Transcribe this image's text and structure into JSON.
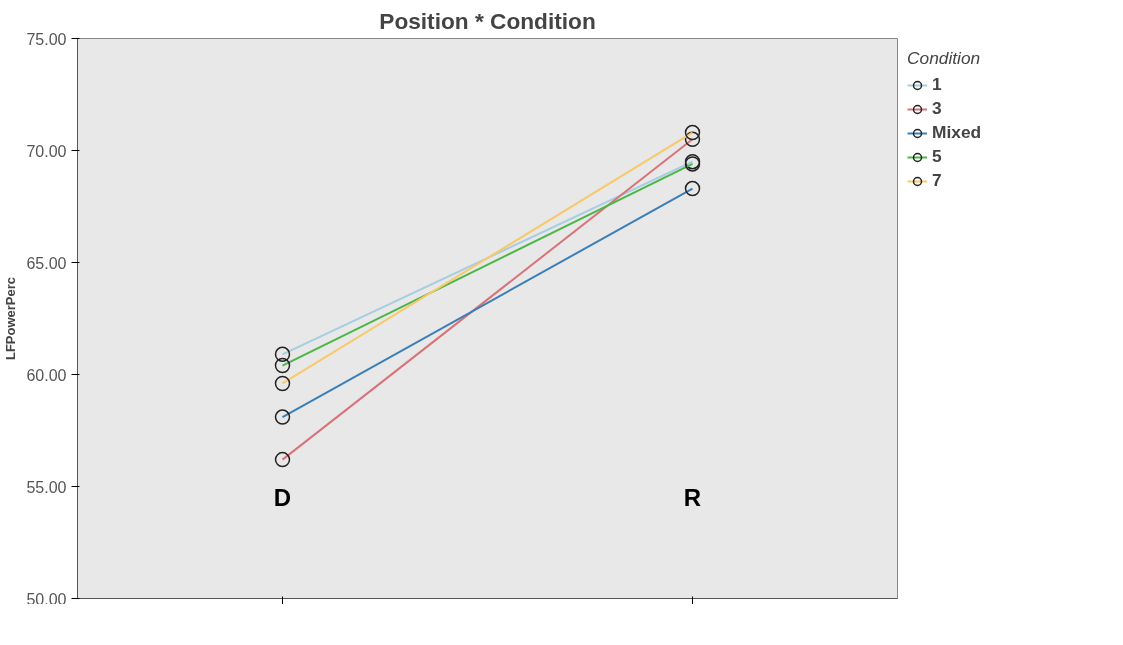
{
  "chart_data": {
    "type": "line",
    "title": "Position * Condition",
    "ylabel": "LFPowerPerc",
    "legend_title": "Condition",
    "categories": [
      "D",
      "R"
    ],
    "series": [
      {
        "name": "1",
        "color": "#a6cde0",
        "values": [
          60.9,
          69.5
        ]
      },
      {
        "name": "3",
        "color": "#d9737a",
        "values": [
          56.2,
          70.5
        ]
      },
      {
        "name": "Mixed",
        "color": "#3b7fb6",
        "values": [
          58.1,
          68.3
        ]
      },
      {
        "name": "5",
        "color": "#4cb648",
        "values": [
          60.4,
          69.4
        ]
      },
      {
        "name": "7",
        "color": "#f7c96b",
        "values": [
          59.6,
          70.8
        ]
      }
    ],
    "ylim": [
      50,
      75
    ],
    "yticks": [
      {
        "value": 50,
        "label": "50.00"
      },
      {
        "value": 55,
        "label": "55.00"
      },
      {
        "value": 60,
        "label": "60.00"
      },
      {
        "value": 65,
        "label": "65.00"
      },
      {
        "value": 70,
        "label": "70.00"
      },
      {
        "value": 75,
        "label": "75.00"
      }
    ],
    "marker": "circle",
    "grid": false,
    "legend": "right"
  }
}
